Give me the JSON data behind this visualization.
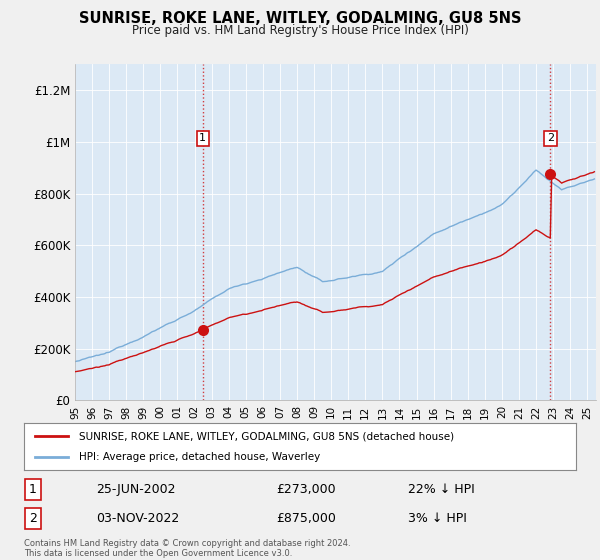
{
  "title": "SUNRISE, ROKE LANE, WITLEY, GODALMING, GU8 5NS",
  "subtitle": "Price paid vs. HM Land Registry's House Price Index (HPI)",
  "xlim_start": 1995.0,
  "xlim_end": 2025.5,
  "ylim": [
    0,
    1300000
  ],
  "yticks": [
    0,
    200000,
    400000,
    600000,
    800000,
    1000000,
    1200000
  ],
  "ytick_labels": [
    "£0",
    "£200K",
    "£400K",
    "£600K",
    "£800K",
    "£1M",
    "£1.2M"
  ],
  "hpi_color": "#7aadd8",
  "price_color": "#cc1111",
  "plot_bg_color": "#dce9f5",
  "bg_color": "#f0f0f0",
  "transaction1_x": 2002.484,
  "transaction1_y": 273000,
  "transaction2_x": 2022.84,
  "transaction2_y": 875000,
  "legend_line1": "SUNRISE, ROKE LANE, WITLEY, GODALMING, GU8 5NS (detached house)",
  "legend_line2": "HPI: Average price, detached house, Waverley",
  "annotation1_date": "25-JUN-2002",
  "annotation1_price": "£273,000",
  "annotation1_hpi": "22% ↓ HPI",
  "annotation2_date": "03-NOV-2022",
  "annotation2_price": "£875,000",
  "annotation2_hpi": "3% ↓ HPI",
  "footer": "Contains HM Land Registry data © Crown copyright and database right 2024.\nThis data is licensed under the Open Government Licence v3.0."
}
